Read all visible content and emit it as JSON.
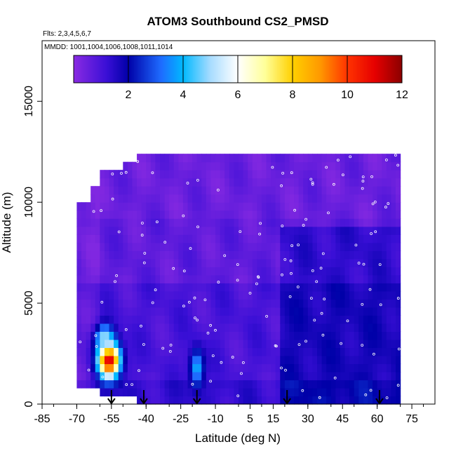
{
  "chart_data": {
    "type": "heatmap",
    "title": "ATOM3 Southbound CS2_PMSD",
    "annotations": [
      "Flts: 2,3,4,5,6,7",
      "MMDD: 1001,1004,1006,1008,1011,1014"
    ],
    "xlabel": "Latitude (deg N)",
    "ylabel": "Altitude (m)",
    "xlim": [
      -85,
      85
    ],
    "ylim": [
      0,
      18000
    ],
    "x_ticks": [
      -85,
      -70,
      -55,
      -40,
      -25,
      -10,
      5,
      15,
      30,
      45,
      60,
      75
    ],
    "x_tick_labels": [
      "-85",
      "-70",
      "-55",
      "-40",
      "-25",
      "-10",
      "5",
      "15",
      "30",
      "45",
      "60",
      "75"
    ],
    "y_ticks": [
      0,
      5000,
      10000,
      15000
    ],
    "y_tick_labels": [
      "0",
      "5000",
      "10000",
      "15000"
    ],
    "colorbar": {
      "range": [
        0,
        12
      ],
      "ticks": [
        2,
        4,
        6,
        8,
        10,
        12
      ],
      "tick_labels": [
        "2",
        "4",
        "6",
        "8",
        "10",
        "12"
      ],
      "stops": [
        {
          "v": 0,
          "color": "#8a2be2"
        },
        {
          "v": 1.2,
          "color": "#3a0fd6"
        },
        {
          "v": 2,
          "color": "#0000a8"
        },
        {
          "v": 3.2,
          "color": "#1e6cff"
        },
        {
          "v": 4,
          "color": "#00b8ff"
        },
        {
          "v": 5,
          "color": "#a8dcff"
        },
        {
          "v": 6,
          "color": "#ffffff"
        },
        {
          "v": 7,
          "color": "#ffff99"
        },
        {
          "v": 8,
          "color": "#ffd000"
        },
        {
          "v": 9,
          "color": "#ff9900"
        },
        {
          "v": 10,
          "color": "#ff3300"
        },
        {
          "v": 11,
          "color": "#e60000"
        },
        {
          "v": 12,
          "color": "#8b0000"
        }
      ]
    },
    "coverage": [
      {
        "lat_min": -69,
        "lat_max": -64,
        "alt_min": 1000,
        "alt_max": 9900
      },
      {
        "lat_min": -64,
        "lat_max": -59,
        "alt_min": 800,
        "alt_max": 10800
      },
      {
        "lat_min": -59,
        "lat_max": -50,
        "alt_min": 500,
        "alt_max": 11500
      },
      {
        "lat_min": -50,
        "lat_max": -44,
        "alt_min": 300,
        "alt_max": 12000
      },
      {
        "lat_min": -44,
        "lat_max": 70,
        "alt_min": 0,
        "alt_max": 12400
      }
    ],
    "hotspots": [
      {
        "lat": -56,
        "alt": 2200,
        "value": 11.5,
        "lat_radius": 6,
        "alt_radius": 1100
      },
      {
        "lat": -58,
        "alt": 3300,
        "value": 5,
        "lat_radius": 5,
        "alt_radius": 800
      },
      {
        "lat": -18,
        "alt": 1800,
        "value": 4,
        "lat_radius": 4,
        "alt_radius": 1200
      }
    ],
    "arrows_latitude": [
      -55,
      -41,
      -18,
      21,
      61
    ]
  }
}
